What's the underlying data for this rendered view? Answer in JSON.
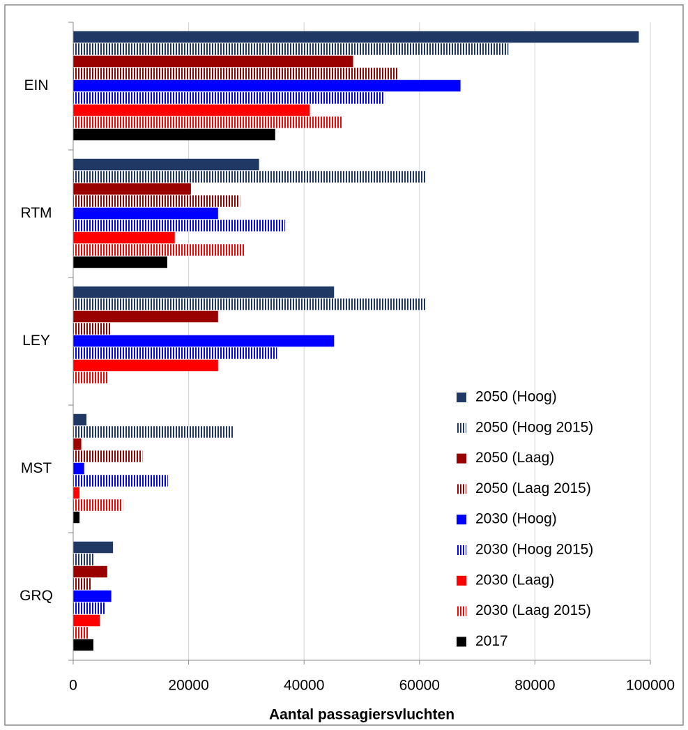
{
  "chart_data": {
    "type": "bar",
    "orientation": "horizontal",
    "x_label": "Aantal passagiersvluchten",
    "categories": [
      "EIN",
      "RTM",
      "LEY",
      "MST",
      "GRQ"
    ],
    "series": [
      {
        "name": "2050 (Hoog)",
        "color": "#1f3864",
        "pattern": "solid",
        "values": [
          98000,
          32200,
          45200,
          2300,
          6900
        ]
      },
      {
        "name": "2050 (Hoog 2015)",
        "color": "#1f3864",
        "pattern": "vertical-stripes",
        "values": [
          75400,
          61000,
          61000,
          27900,
          3500
        ]
      },
      {
        "name": "2050 (Laag)",
        "color": "#990000",
        "pattern": "solid",
        "values": [
          48500,
          20400,
          25100,
          1400,
          5900
        ]
      },
      {
        "name": "2050 (Laag 2015)",
        "color": "#990000",
        "pattern": "vertical-stripes",
        "values": [
          56400,
          28900,
          6500,
          12000,
          3100
        ]
      },
      {
        "name": "2030 (Hoog)",
        "color": "#0000ff",
        "pattern": "solid",
        "values": [
          67100,
          25100,
          45200,
          1900,
          6600
        ]
      },
      {
        "name": "2030 (Hoog 2015)",
        "color": "#0000ff",
        "pattern": "vertical-stripes",
        "values": [
          54000,
          36700,
          35300,
          16400,
          5600
        ]
      },
      {
        "name": "2030 (Laag)",
        "color": "#ff0000",
        "pattern": "solid",
        "values": [
          41000,
          17600,
          25100,
          1100,
          4600
        ]
      },
      {
        "name": "2030 (Laag 2015)",
        "color": "#ff0000",
        "pattern": "vertical-stripes",
        "values": [
          46600,
          29700,
          6000,
          8600,
          2600
        ]
      },
      {
        "name": "2017",
        "color": "#000000",
        "pattern": "solid",
        "values": [
          35000,
          16300,
          null,
          1100,
          3500
        ]
      }
    ],
    "xlim": [
      0,
      100000
    ],
    "xticks": [
      0,
      20000,
      40000,
      60000,
      80000,
      100000
    ],
    "grid": true,
    "legend": "lower right"
  }
}
